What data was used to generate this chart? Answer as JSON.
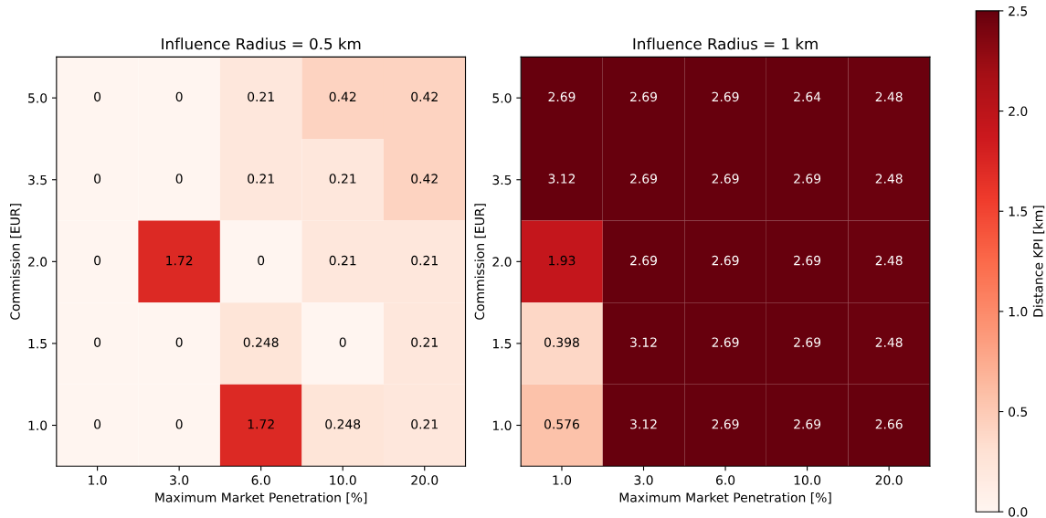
{
  "chart_data": [
    {
      "type": "heatmap",
      "title": "Influence Radius = 0.5 km",
      "xlabel": "Maximum Market Penetration [%]",
      "ylabel": "Commission [EUR]",
      "categories": [
        "1.0",
        "3.0",
        "6.0",
        "10.0",
        "20.0"
      ],
      "y_categories": [
        "5.0",
        "3.5",
        "2.0",
        "1.5",
        "1.0"
      ],
      "cells": [
        [
          0,
          0,
          0.21,
          0.42,
          0.42
        ],
        [
          0,
          0,
          0.21,
          0.21,
          0.42
        ],
        [
          0,
          1.72,
          0,
          0.21,
          0.21
        ],
        [
          0,
          0,
          0.248,
          0,
          0.21
        ],
        [
          0,
          0,
          1.72,
          0.248,
          0.21
        ]
      ],
      "data_labels": true
    },
    {
      "type": "heatmap",
      "title": "Influence Radius = 1 km",
      "xlabel": "Maximum Market Penetration [%]",
      "ylabel": "Commission [EUR]",
      "clabel": "Distance KPI [km]",
      "categories": [
        "1.0",
        "3.0",
        "6.0",
        "10.0",
        "20.0"
      ],
      "y_categories": [
        "5.0",
        "3.5",
        "2.0",
        "1.5",
        "1.0"
      ],
      "cells": [
        [
          2.69,
          2.69,
          2.69,
          2.64,
          2.48
        ],
        [
          3.12,
          2.69,
          2.69,
          2.69,
          2.48
        ],
        [
          1.93,
          2.69,
          2.69,
          2.69,
          2.48
        ],
        [
          0.398,
          3.12,
          2.69,
          2.69,
          2.48
        ],
        [
          0.576,
          3.12,
          2.69,
          2.69,
          2.66
        ]
      ],
      "clim": [
        0,
        2.5
      ],
      "cticks": [
        {
          "value": 0,
          "label": "0.0"
        },
        {
          "value": 0.5,
          "label": "0.5"
        },
        {
          "value": 1,
          "label": "1.0"
        },
        {
          "value": 1.5,
          "label": "1.5"
        },
        {
          "value": 2,
          "label": "2.0"
        },
        {
          "value": 2.5,
          "label": "2.5"
        }
      ],
      "data_labels": true
    }
  ]
}
